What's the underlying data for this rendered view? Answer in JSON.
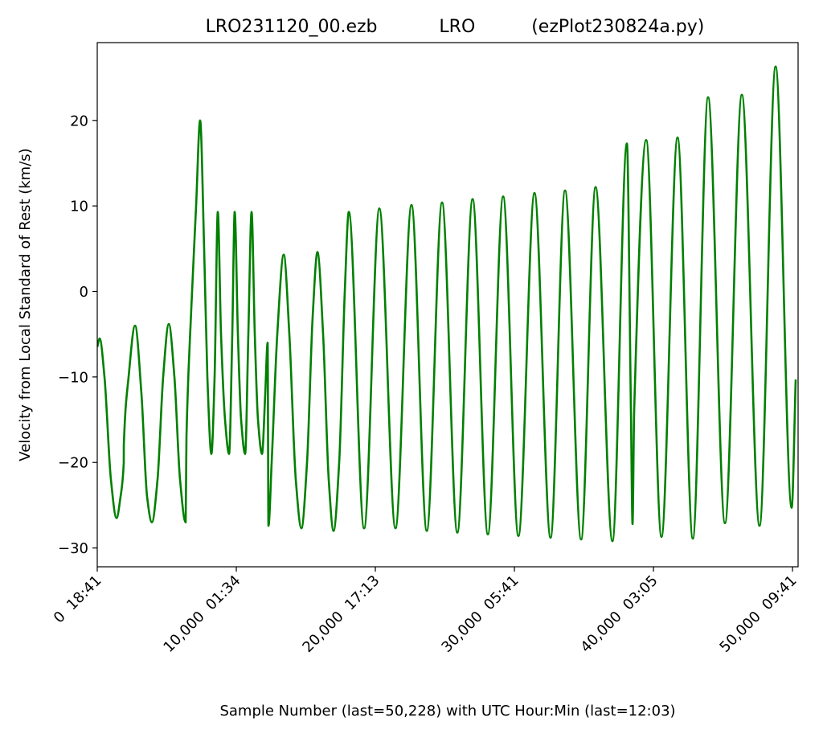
{
  "chart_data": {
    "type": "line",
    "title": "LRO231120_00.ezb           LRO          (ezPlot230824a.py)",
    "x_label": "Sample Number (last=50,228) with UTC Hour:Min (last=12:03)",
    "y_label": "Velocity from Local Standard of Rest (km/s)",
    "xlim": [
      0,
      50400
    ],
    "ylim": [
      -32.2,
      29.1
    ],
    "xticks": [
      {
        "value": 0,
        "label": "0  18:41"
      },
      {
        "value": 10000,
        "label": "10,000  01:34"
      },
      {
        "value": 20000,
        "label": "20,000  17:13"
      },
      {
        "value": 30000,
        "label": "30,000  05:41"
      },
      {
        "value": 40000,
        "label": "40,000  03:05"
      },
      {
        "value": 50000,
        "label": "50,000  09:41"
      }
    ],
    "yticks": [
      {
        "value": -30,
        "label": "−30"
      },
      {
        "value": -20,
        "label": "−20"
      },
      {
        "value": -10,
        "label": "−10"
      },
      0,
      10,
      20
    ],
    "grid": false,
    "series": [
      {
        "color": "#008000",
        "x": [
          0,
          173,
          520,
          983,
          1387,
          1676,
          1907,
          1910,
          2254,
          2717,
          3179,
          3584,
          3930,
          4335,
          4740,
          5144,
          5549,
          5953,
          6358,
          6416,
          6763,
          7109,
          7398,
          7687,
          7919,
          8208,
          8439,
          8670,
          8901,
          9190,
          9479,
          9710,
          9884,
          10115,
          10346,
          10635,
          10866,
          11098,
          11329,
          11560,
          11849,
          12080,
          12254,
          12311,
          12543,
          12947,
          13410,
          13814,
          14277,
          14681,
          15086,
          15490,
          15837,
          16242,
          16646,
          16993,
          17398,
          17802,
          18091,
          19190,
          20288,
          21444,
          22600,
          23698,
          24796,
          25894,
          26993,
          28091,
          29189,
          30287,
          31443,
          32599,
          33640,
          34796,
          35836,
          37050,
          38090,
          38379,
          38495,
          38611,
          39477,
          40576,
          41732,
          42830,
          43928,
          45142,
          46356,
          47627,
          48783,
          49939,
          50228
        ],
        "values": [
          -6.5,
          -5.5,
          -10,
          -22,
          -26.5,
          -24,
          -20,
          -18,
          -10,
          -4,
          -12,
          -24,
          -27,
          -22,
          -10,
          -3.8,
          -10,
          -22,
          -27,
          -17,
          -2,
          10,
          20,
          5,
          -10,
          -19,
          -10,
          9.3,
          -5,
          -15,
          -19,
          -5,
          9.3,
          -5,
          -15,
          -19,
          -5,
          9.3,
          -5,
          -15,
          -19,
          -12,
          -6,
          -27.4,
          -20,
          -5,
          4.3,
          -5,
          -22,
          -27.7,
          -20,
          -3,
          4.6,
          -5,
          -22,
          -28,
          -20,
          0,
          9.3,
          -27.7,
          9.7,
          -27.7,
          10.1,
          -28.0,
          10.4,
          -28.2,
          10.8,
          -28.4,
          11.1,
          -28.6,
          11.5,
          -28.8,
          11.8,
          -29.0,
          12.2,
          -29.2,
          17.3,
          -14,
          -27.2,
          -14,
          17.7,
          -28.7,
          18.0,
          -28.9,
          22.7,
          -27.1,
          23.0,
          -27.4,
          26.3,
          -25.3,
          -10.3
        ]
      }
    ]
  }
}
